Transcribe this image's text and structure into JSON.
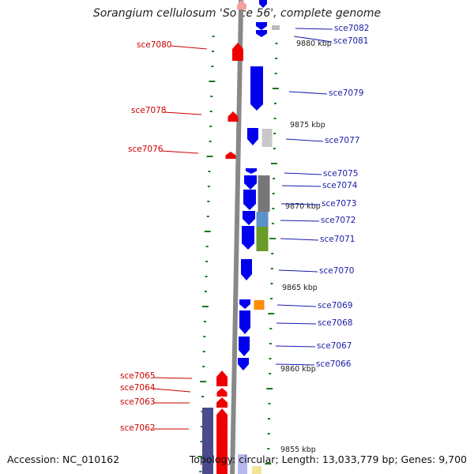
{
  "title": "Sorangium cellulosum 'So ce 56', complete genome",
  "footer": {
    "accession_label": "Accession: NC_010162",
    "summary": "Topology: circular; Length: 13,033,779 bp; Genes: 9,700"
  },
  "colors": {
    "forward_gene": "#ee0000",
    "reverse_gene": "#0000ee",
    "backbone": "#888888",
    "tick": "#1a7a1a",
    "forward_label": "#cc0000",
    "reverse_label": "#1a1aaa"
  },
  "ruler": [
    {
      "label": "9880 kbp"
    },
    {
      "label": "9875 kbp"
    },
    {
      "label": "9870 kbp"
    },
    {
      "label": "9865 kbp"
    },
    {
      "label": "9860 kbp"
    },
    {
      "label": "9855 kbp"
    }
  ],
  "genes": [
    {
      "name": "sce7082",
      "strand": "reverse"
    },
    {
      "name": "sce7081",
      "strand": "reverse"
    },
    {
      "name": "sce7080",
      "strand": "forward"
    },
    {
      "name": "sce7079",
      "strand": "reverse"
    },
    {
      "name": "sce7078",
      "strand": "forward"
    },
    {
      "name": "sce7077",
      "strand": "reverse"
    },
    {
      "name": "sce7076",
      "strand": "forward"
    },
    {
      "name": "sce7075",
      "strand": "reverse"
    },
    {
      "name": "sce7074",
      "strand": "reverse"
    },
    {
      "name": "sce7073",
      "strand": "reverse"
    },
    {
      "name": "sce7072",
      "strand": "reverse"
    },
    {
      "name": "sce7071",
      "strand": "reverse"
    },
    {
      "name": "sce7070",
      "strand": "reverse"
    },
    {
      "name": "sce7069",
      "strand": "reverse"
    },
    {
      "name": "sce7068",
      "strand": "reverse"
    },
    {
      "name": "sce7067",
      "strand": "reverse"
    },
    {
      "name": "sce7066",
      "strand": "reverse"
    },
    {
      "name": "sce7065",
      "strand": "forward"
    },
    {
      "name": "sce7064",
      "strand": "forward"
    },
    {
      "name": "sce7063",
      "strand": "forward"
    },
    {
      "name": "sce7062",
      "strand": "forward"
    }
  ]
}
